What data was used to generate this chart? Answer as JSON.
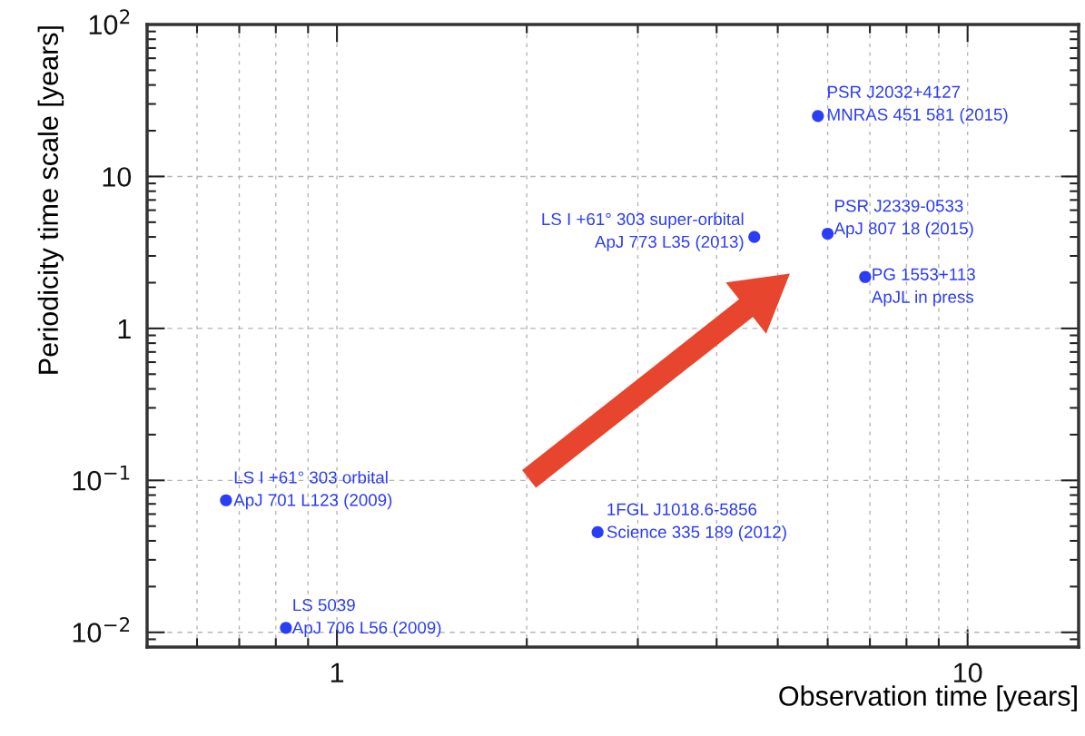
{
  "chart_data": {
    "type": "scatter",
    "xlabel": "Observation time [years]",
    "ylabel": "Periodicity time scale [years]",
    "x": [
      0.667,
      0.83,
      2.59,
      4.59,
      5.79,
      6.0,
      6.88
    ],
    "series": [
      {
        "color": "#2b3cf5",
        "values": [
          0.074,
          0.0107,
          0.0456,
          4.0,
          25,
          4.2,
          2.18
        ]
      }
    ],
    "marker": "circle",
    "log": "xy",
    "xlim": [
      0.5,
      15
    ],
    "ylim": [
      0.008,
      100
    ],
    "xticks": [
      1,
      10
    ],
    "yticks": [
      {
        "value": 0.01,
        "label": "10$^{−2}$"
      },
      {
        "value": 0.1,
        "label": "10$^{−1}$"
      },
      1,
      10,
      {
        "value": 100,
        "label": "10$^{2}$"
      }
    ],
    "grid": true,
    "annotations": [
      {
        "text": "LS I +61° 303 orbital\nApJ 701 L123 (2009)",
        "x": 0.667,
        "y": 0.074
      },
      {
        "text": "LS 5039\nApJ 706 L56 (2009)",
        "x": 0.83,
        "y": 0.0107
      },
      {
        "text": "1FGL J1018.6-5856\nScience 335 189 (2012)",
        "x": 2.59,
        "y": 0.0456
      },
      {
        "text": "LS I +61° 303 super-orbital\nApJ 773 L35 (2013)",
        "x": 4.59,
        "y": 4.0
      },
      {
        "text": "PSR J2032+4127\nMNRAS 451 581 (2015)",
        "x": 5.79,
        "y": 25
      },
      {
        "text": "PSR J2339-0533\nApJ 807 18 (2015)",
        "x": 6.0,
        "y": 4.2
      },
      {
        "text": "PG 1553+113\nApJL in press",
        "x": 6.88,
        "y": 2.18
      }
    ]
  }
}
